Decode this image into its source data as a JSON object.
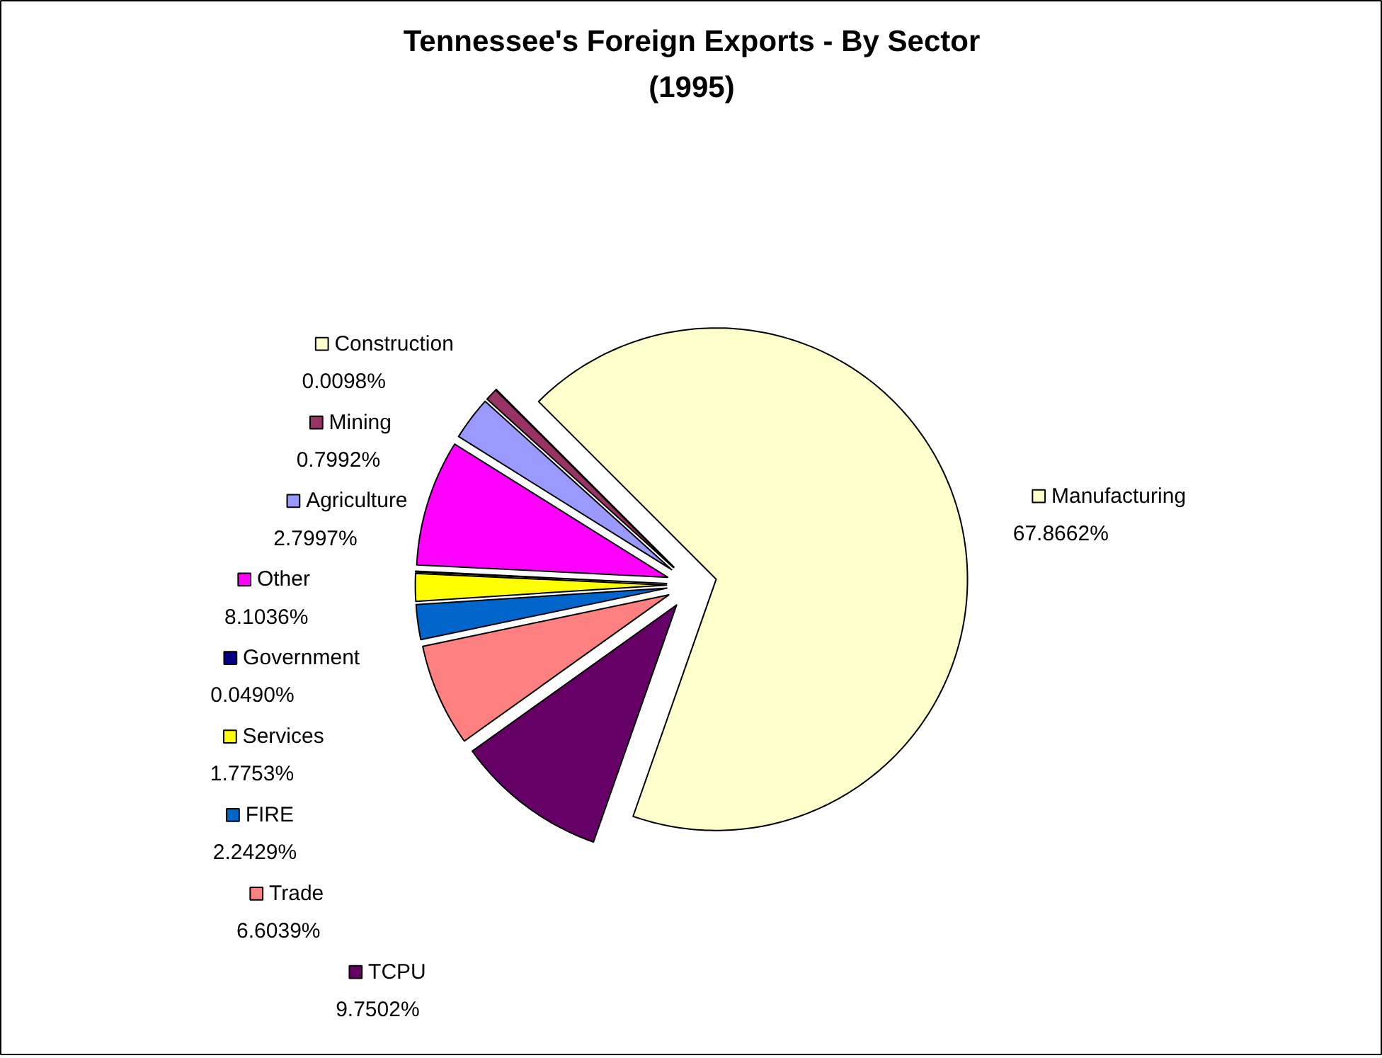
{
  "chart_data": {
    "type": "pie",
    "title": "Tennessee's Foreign Exports - By Sector\n(1995)",
    "categories": [
      "Manufacturing",
      "TCPU",
      "Trade",
      "FIRE",
      "Services",
      "Government",
      "Other",
      "Agriculture",
      "Mining",
      "Construction"
    ],
    "values": [
      67.8662,
      9.7502,
      6.6039,
      2.2429,
      1.7753,
      0.049,
      8.1036,
      2.7997,
      0.7992,
      0.0098
    ],
    "colors": [
      "#ffffcc",
      "#660066",
      "#ff8080",
      "#0066cc",
      "#ffff00",
      "#000080",
      "#ff00ff",
      "#9999ff",
      "#993366",
      "#ffffcc"
    ],
    "legend": "left",
    "value_labels": [
      "67.8662%",
      "9.7502%",
      "6.6039%",
      "2.2429%",
      "1.7753%",
      "0.0490%",
      "8.1036%",
      "2.7997%",
      "0.7992%",
      "0.0098%"
    ]
  }
}
